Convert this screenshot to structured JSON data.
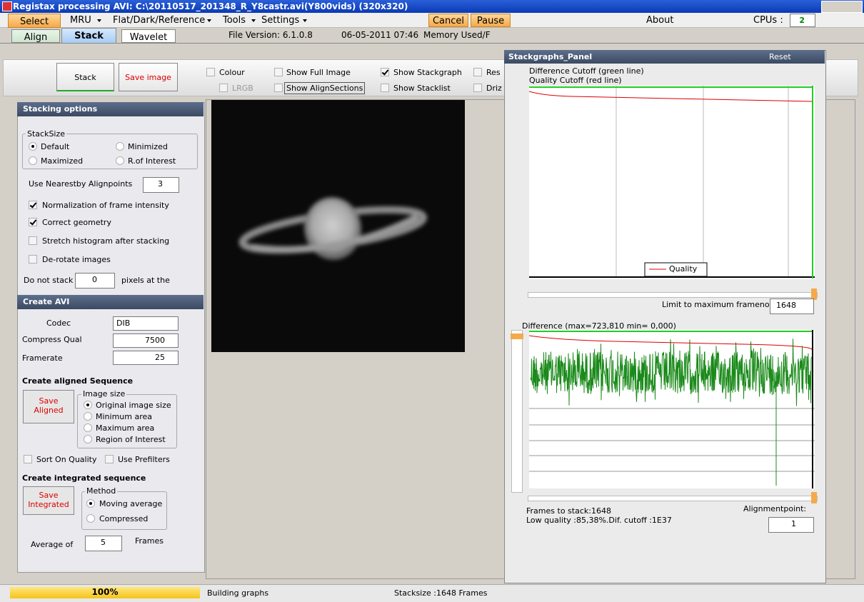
{
  "window": {
    "title": "Registax processing AVI: C:\\20110517_201348_R_Y8castr.avi(Y800vids) (320x320)"
  },
  "menu": {
    "select": "Select",
    "mru": "MRU",
    "flat_dark": "Flat/Dark/Reference",
    "tools": "Tools",
    "settings": "Settings",
    "cancel": "Cancel",
    "pause": "Pause",
    "about": "About",
    "cpus_label": "CPUs :",
    "cpus_value": "2"
  },
  "tabs": [
    "Align",
    "Stack",
    "Wavelet"
  ],
  "info": {
    "file_version": "File Version: 6.1.0.8",
    "date": "06-05-2011 07:46",
    "memory": "Memory Used/F"
  },
  "toolbar": {
    "stack": "Stack",
    "save_image": "Save image",
    "colour": "Colour",
    "lrgb": "LRGB",
    "show_full_image": "Show Full Image",
    "show_alignsections": "Show AlignSections",
    "show_stackgraph": "Show Stackgraph",
    "show_stacklist": "Show Stacklist",
    "res": "Res",
    "driz": "Driz"
  },
  "stacking_options": {
    "title": "Stacking options",
    "stacksize": "StackSize",
    "default": "Default",
    "minimized": "Minimized",
    "maximized": "Maximized",
    "roi": "R.of Interest",
    "nearest_label": "Use Nearestby Alignpoints",
    "nearest_value": "3",
    "normalization": "Normalization of frame intensity",
    "geometry": "Correct geometry",
    "stretch": "Stretch histogram after stacking",
    "derotate": "De-rotate images",
    "do_not_stack": "Do not stack",
    "pixels_value": "0",
    "pixels_label": "pixels at the"
  },
  "create_avi": {
    "title": "Create AVI",
    "codec_label": "Codec",
    "codec_value": "DIB",
    "qual_label": "Compress Qual",
    "qual_value": "7500",
    "framerate_label": "Framerate",
    "framerate_value": "25",
    "aligned_title": "Create aligned Sequence",
    "save_aligned": "Save Aligned",
    "image_size": "Image size",
    "original": "Original image size",
    "minimum": "Minimum area",
    "maximum": "Maximum area",
    "region": "Region of Interest",
    "sort_quality": "Sort On Quality",
    "prefilters": "Use Prefilters",
    "integrated_title": "Create integrated sequence",
    "save_integrated": "Save Integrated",
    "method": "Method",
    "moving": "Moving average",
    "compressed": "Compressed",
    "average_label": "Average of",
    "average_value": "5",
    "frames": "Frames"
  },
  "stackgraphs": {
    "title": "Stackgraphs_Panel",
    "reset": "Reset",
    "diff_cutoff": "Difference Cutoff (green line)",
    "quality_cutoff": "Quality Cutoff (red line)",
    "legend": "Quality",
    "limit_label": "Limit to maximum frameno:",
    "limit_value": "1648",
    "difference": "Difference (max=723,810 min= 0,000)",
    "frames_to_stack": "Frames to stack:1648",
    "low_quality": "Low quality :85,38%.Dif. cutoff :1E37",
    "alignmentpoint": "Alignmentpoint:",
    "alignmentpoint_value": "1"
  },
  "status": {
    "progress": "100%",
    "building": "Building graphs",
    "stacksize": "Stacksize :1648 Frames"
  }
}
